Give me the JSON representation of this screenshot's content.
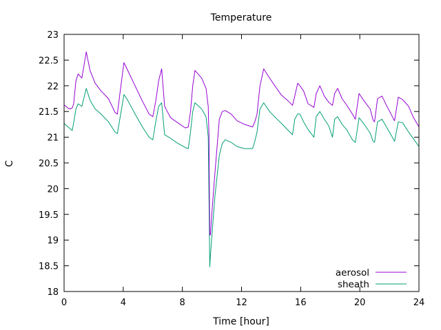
{
  "chart_data": {
    "type": "line",
    "title": "Temperature",
    "xlabel": "Time [hour]",
    "ylabel": "C",
    "xlim": [
      0,
      24
    ],
    "ylim": [
      18,
      23
    ],
    "xticks": [
      "0",
      "4",
      "8",
      "12",
      "16",
      "20",
      "24"
    ],
    "xtick_values": [
      0,
      4,
      8,
      12,
      16,
      20,
      24
    ],
    "yticks": [
      "18",
      "18.5",
      "19",
      "19.5",
      "20",
      "20.5",
      "21",
      "21.5",
      "22",
      "22.5",
      "23"
    ],
    "ytick_values": [
      18,
      18.5,
      19,
      19.5,
      20,
      20.5,
      21,
      21.5,
      22,
      22.5,
      23
    ],
    "grid": false,
    "legend_position": "bottom-right",
    "series": [
      {
        "name": "aerosol",
        "color": "#9400d3",
        "x": [
          0,
          0.25,
          0.4,
          0.55,
          0.65,
          0.8,
          0.95,
          1.2,
          1.5,
          1.75,
          2.1,
          2.5,
          3.0,
          3.45,
          3.6,
          3.8,
          4.05,
          4.3,
          4.8,
          5.3,
          5.75,
          6.0,
          6.2,
          6.4,
          6.6,
          6.8,
          7.2,
          7.7,
          8.2,
          8.4,
          8.55,
          8.7,
          8.85,
          9.3,
          9.6,
          9.75,
          9.8,
          9.85,
          9.9,
          10.0,
          10.2,
          10.5,
          10.7,
          10.9,
          11.3,
          11.7,
          12.2,
          12.75,
          12.9,
          13.05,
          13.25,
          13.5,
          13.9,
          14.3,
          14.7,
          15.1,
          15.45,
          15.6,
          15.8,
          15.95,
          16.2,
          16.5,
          16.9,
          17.05,
          17.3,
          17.6,
          17.9,
          18.15,
          18.3,
          18.5,
          18.8,
          19.1,
          19.5,
          19.7,
          19.95,
          20.3,
          20.7,
          20.9,
          21.0,
          21.2,
          21.5,
          21.8,
          22.2,
          22.35,
          22.6,
          22.9,
          23.3,
          23.6,
          24.0
        ],
        "values": [
          21.63,
          21.57,
          21.55,
          21.57,
          21.65,
          22.1,
          22.23,
          22.15,
          22.66,
          22.3,
          22.05,
          21.9,
          21.75,
          21.48,
          21.45,
          21.9,
          22.45,
          22.3,
          22.0,
          21.7,
          21.45,
          21.4,
          21.7,
          22.1,
          22.33,
          21.6,
          21.38,
          21.28,
          21.18,
          21.2,
          21.5,
          22.0,
          22.3,
          22.15,
          21.95,
          21.6,
          21.0,
          19.1,
          19.1,
          19.55,
          20.3,
          21.35,
          21.5,
          21.52,
          21.45,
          21.32,
          21.25,
          21.2,
          21.3,
          21.45,
          22.0,
          22.33,
          22.15,
          21.98,
          21.82,
          21.72,
          21.62,
          21.8,
          22.05,
          22.0,
          21.9,
          21.65,
          21.58,
          21.85,
          22.0,
          21.8,
          21.68,
          21.62,
          21.85,
          21.95,
          21.75,
          21.63,
          21.45,
          21.35,
          21.85,
          21.7,
          21.55,
          21.33,
          21.3,
          21.75,
          21.8,
          21.62,
          21.4,
          21.32,
          21.78,
          21.73,
          21.6,
          21.4,
          21.2
        ]
      },
      {
        "name": "sheath",
        "color": "#009e73",
        "x": [
          0,
          0.25,
          0.4,
          0.55,
          0.65,
          0.8,
          0.95,
          1.2,
          1.5,
          1.75,
          2.1,
          2.5,
          3.0,
          3.45,
          3.6,
          3.8,
          4.05,
          4.3,
          4.8,
          5.3,
          5.75,
          6.0,
          6.2,
          6.4,
          6.6,
          6.8,
          7.2,
          7.7,
          8.2,
          8.4,
          8.55,
          8.7,
          8.85,
          9.3,
          9.6,
          9.75,
          9.8,
          9.85,
          9.9,
          10.0,
          10.2,
          10.5,
          10.7,
          10.9,
          11.3,
          11.7,
          12.2,
          12.75,
          12.9,
          13.05,
          13.25,
          13.5,
          13.9,
          14.3,
          14.7,
          15.1,
          15.45,
          15.6,
          15.8,
          15.95,
          16.2,
          16.5,
          16.9,
          17.05,
          17.3,
          17.6,
          17.9,
          18.15,
          18.3,
          18.5,
          18.8,
          19.1,
          19.5,
          19.7,
          19.95,
          20.3,
          20.7,
          20.9,
          21.0,
          21.2,
          21.5,
          21.8,
          22.2,
          22.35,
          22.6,
          22.9,
          23.3,
          23.6,
          24.0
        ],
        "values": [
          21.27,
          21.2,
          21.17,
          21.13,
          21.28,
          21.55,
          21.65,
          21.6,
          21.95,
          21.72,
          21.55,
          21.45,
          21.3,
          21.1,
          21.07,
          21.4,
          21.83,
          21.72,
          21.45,
          21.2,
          21.0,
          20.95,
          21.3,
          21.6,
          21.67,
          21.05,
          20.98,
          20.88,
          20.8,
          20.78,
          21.1,
          21.5,
          21.67,
          21.55,
          21.4,
          21.0,
          19.8,
          18.48,
          18.7,
          19.1,
          19.85,
          20.65,
          20.88,
          20.95,
          20.9,
          20.82,
          20.78,
          20.78,
          20.92,
          21.1,
          21.55,
          21.67,
          21.5,
          21.38,
          21.27,
          21.15,
          21.05,
          21.35,
          21.45,
          21.45,
          21.3,
          21.15,
          21.0,
          21.4,
          21.5,
          21.35,
          21.22,
          21.0,
          21.35,
          21.4,
          21.25,
          21.15,
          20.95,
          20.9,
          21.38,
          21.25,
          21.08,
          20.92,
          20.9,
          21.3,
          21.35,
          21.2,
          21.0,
          20.92,
          21.3,
          21.28,
          21.1,
          20.98,
          20.82
        ]
      }
    ]
  }
}
